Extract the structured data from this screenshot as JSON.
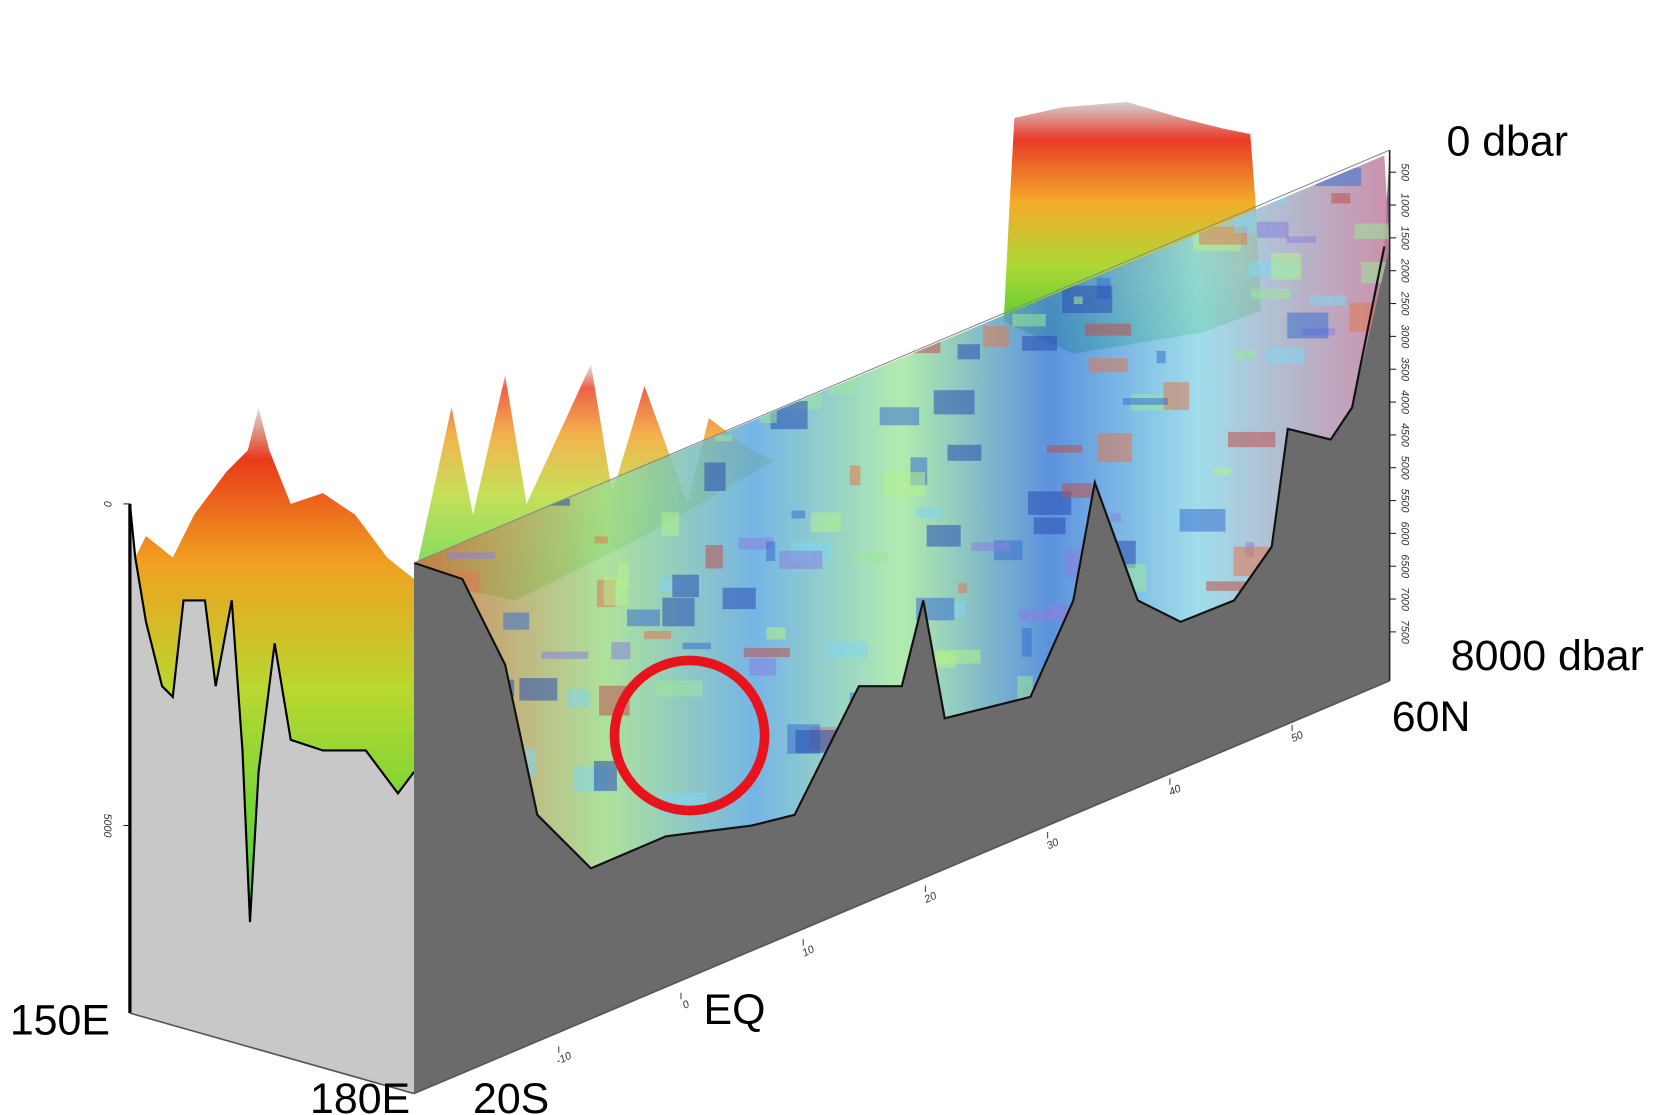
{
  "labels": {
    "top_depth": "0 dbar",
    "bottom_depth": "8000 dbar",
    "north": "60N",
    "west": "150E",
    "east": "180E",
    "south": "20S",
    "equator": "EQ"
  },
  "depth_ticks": [
    500,
    1000,
    1500,
    2000,
    2500,
    3000,
    3500,
    4000,
    4500,
    5000,
    5500,
    6000,
    6500,
    7000,
    7500
  ],
  "lat_ticks": [
    -10,
    0,
    10,
    20,
    30,
    40,
    50
  ],
  "left_depth_ticks": [
    0,
    5000
  ]
}
